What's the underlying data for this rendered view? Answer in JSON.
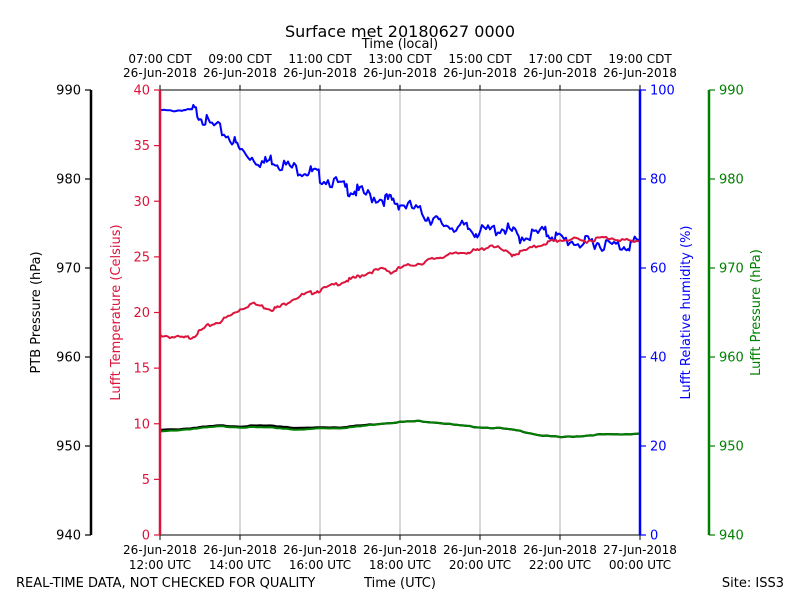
{
  "chart_data": {
    "type": "line",
    "title": "Surface met 20180627 0000",
    "top_axis_label": "Time (local)",
    "bottom_axis_label": "Time (UTC)",
    "footer_left": "REAL-TIME DATA, NOT CHECKED FOR QUALITY",
    "footer_right": "Site: ISS3",
    "x_range_hours_utc": [
      12,
      24
    ],
    "utc_ticks": [
      {
        "hour": 12,
        "date": "26-Jun-2018",
        "time": "12:00 UTC"
      },
      {
        "hour": 14,
        "date": "26-Jun-2018",
        "time": "14:00 UTC"
      },
      {
        "hour": 16,
        "date": "26-Jun-2018",
        "time": "16:00 UTC"
      },
      {
        "hour": 18,
        "date": "26-Jun-2018",
        "time": "18:00 UTC"
      },
      {
        "hour": 20,
        "date": "26-Jun-2018",
        "time": "20:00 UTC"
      },
      {
        "hour": 22,
        "date": "26-Jun-2018",
        "time": "22:00 UTC"
      },
      {
        "hour": 24,
        "date": "27-Jun-2018",
        "time": "00:00 UTC"
      }
    ],
    "local_ticks": [
      {
        "hour": 12,
        "time": "07:00 CDT",
        "date": "26-Jun-2018"
      },
      {
        "hour": 14,
        "time": "09:00 CDT",
        "date": "26-Jun-2018"
      },
      {
        "hour": 16,
        "time": "11:00 CDT",
        "date": "26-Jun-2018"
      },
      {
        "hour": 18,
        "time": "13:00 CDT",
        "date": "26-Jun-2018"
      },
      {
        "hour": 20,
        "time": "15:00 CDT",
        "date": "26-Jun-2018"
      },
      {
        "hour": 22,
        "time": "17:00 CDT",
        "date": "26-Jun-2018"
      },
      {
        "hour": 24,
        "time": "19:00 CDT",
        "date": "26-Jun-2018"
      }
    ],
    "axes": {
      "ptb_pressure": {
        "label": "PTB Pressure (hPa)",
        "range": [
          940,
          990
        ],
        "ticks": [
          "940",
          "950",
          "960",
          "970",
          "980",
          "990"
        ],
        "color": "#000000"
      },
      "temperature": {
        "label": "Lufft Temperature (Celsius)",
        "range": [
          0,
          40
        ],
        "ticks": [
          "0",
          "5",
          "10",
          "15",
          "20",
          "25",
          "30",
          "35",
          "40"
        ],
        "color": "#dc143c"
      },
      "humidity": {
        "label": "Lufft Relative humidity (%)",
        "range": [
          0,
          100
        ],
        "ticks": [
          "0",
          "20",
          "40",
          "60",
          "80",
          "100"
        ],
        "color": "#0000ff"
      },
      "lufft_pressure": {
        "label": "Lufft Pressure (hPa)",
        "range": [
          940,
          990
        ],
        "ticks": [
          "940",
          "950",
          "960",
          "970",
          "980",
          "990"
        ],
        "color": "#008000"
      }
    },
    "series": [
      {
        "name": "Lufft Relative humidity",
        "axis": "humidity",
        "color": "#0000ff",
        "x": [
          12.0,
          12.3,
          12.6,
          12.8,
          13.0,
          13.2,
          13.5,
          13.8,
          14.0,
          14.3,
          14.6,
          14.8,
          15.0,
          15.3,
          15.6,
          15.8,
          16.0,
          16.3,
          16.6,
          16.8,
          17.0,
          17.3,
          17.6,
          17.8,
          18.0,
          18.3,
          18.6,
          18.8,
          19.0,
          19.3,
          19.6,
          19.8,
          20.0,
          20.3,
          20.6,
          20.8,
          21.0,
          21.3,
          21.6,
          21.8,
          22.0,
          22.3,
          22.6,
          22.8,
          23.0,
          23.3,
          23.6,
          23.8,
          24.0
        ],
        "values": [
          95.5,
          95.3,
          95.5,
          95.6,
          94.5,
          92.5,
          91.0,
          89.0,
          86.5,
          85.0,
          83.5,
          84.5,
          83.5,
          82.5,
          82.0,
          81.5,
          80.5,
          79.5,
          78.0,
          77.5,
          77.0,
          76.0,
          75.5,
          75.0,
          74.5,
          73.5,
          72.0,
          71.0,
          70.0,
          69.5,
          69.0,
          68.5,
          68.0,
          68.5,
          69.0,
          68.0,
          67.0,
          67.5,
          68.0,
          67.5,
          66.5,
          66.0,
          65.5,
          66.0,
          65.5,
          65.0,
          65.0,
          65.5,
          66.0
        ]
      },
      {
        "name": "Lufft Temperature",
        "axis": "temperature",
        "color": "#dc143c",
        "x": [
          12.0,
          12.3,
          12.6,
          12.8,
          13.0,
          13.2,
          13.5,
          13.8,
          14.0,
          14.3,
          14.6,
          14.8,
          15.0,
          15.3,
          15.6,
          15.8,
          16.0,
          16.3,
          16.6,
          16.8,
          17.0,
          17.3,
          17.6,
          17.8,
          18.0,
          18.3,
          18.6,
          18.8,
          19.0,
          19.3,
          19.6,
          19.8,
          20.0,
          20.3,
          20.6,
          20.8,
          21.0,
          21.3,
          21.6,
          21.8,
          22.0,
          22.3,
          22.6,
          22.8,
          23.0,
          23.3,
          23.6,
          23.8,
          24.0
        ],
        "values": [
          18.0,
          17.8,
          17.7,
          17.8,
          18.3,
          18.8,
          19.2,
          19.8,
          20.3,
          20.8,
          20.5,
          20.3,
          20.5,
          21.2,
          21.6,
          21.8,
          22.0,
          22.4,
          22.8,
          23.0,
          23.3,
          23.7,
          23.9,
          23.6,
          24.0,
          24.3,
          24.5,
          24.8,
          25.0,
          25.2,
          25.4,
          25.5,
          25.6,
          26.1,
          25.5,
          25.2,
          25.4,
          25.8,
          26.2,
          26.4,
          26.5,
          26.6,
          26.4,
          26.5,
          26.7,
          26.7,
          26.5,
          26.4,
          26.5
        ]
      },
      {
        "name": "PTB Pressure",
        "axis": "ptb_pressure",
        "color": "#000000",
        "x": [
          12.0,
          12.5,
          13.0,
          13.5,
          14.0,
          14.5,
          15.0,
          15.5,
          16.0,
          16.5,
          17.0,
          17.5,
          18.0,
          18.5,
          19.0,
          19.5,
          20.0,
          20.5,
          21.0,
          21.5,
          22.0,
          22.5,
          23.0,
          23.5,
          24.0
        ],
        "values": [
          951.8,
          951.9,
          952.1,
          952.3,
          952.2,
          952.3,
          952.2,
          952.0,
          952.1,
          952.1,
          952.3,
          952.5,
          952.7,
          952.8,
          952.6,
          952.3,
          952.1,
          952.0,
          951.7,
          951.2,
          951.0,
          951.1,
          951.3,
          951.3,
          951.4
        ]
      },
      {
        "name": "Lufft Pressure",
        "axis": "lufft_pressure",
        "color": "#008000",
        "x": [
          12.0,
          12.5,
          13.0,
          13.5,
          14.0,
          14.5,
          15.0,
          15.5,
          16.0,
          16.5,
          17.0,
          17.5,
          18.0,
          18.5,
          19.0,
          19.5,
          20.0,
          20.5,
          21.0,
          21.5,
          22.0,
          22.5,
          23.0,
          23.5,
          24.0
        ],
        "values": [
          951.6,
          951.8,
          952.0,
          952.2,
          952.1,
          952.1,
          952.0,
          951.8,
          952.0,
          952.0,
          952.2,
          952.5,
          952.7,
          952.8,
          952.6,
          952.3,
          952.1,
          952.0,
          951.7,
          951.2,
          951.0,
          951.1,
          951.3,
          951.3,
          951.4
        ]
      }
    ]
  }
}
